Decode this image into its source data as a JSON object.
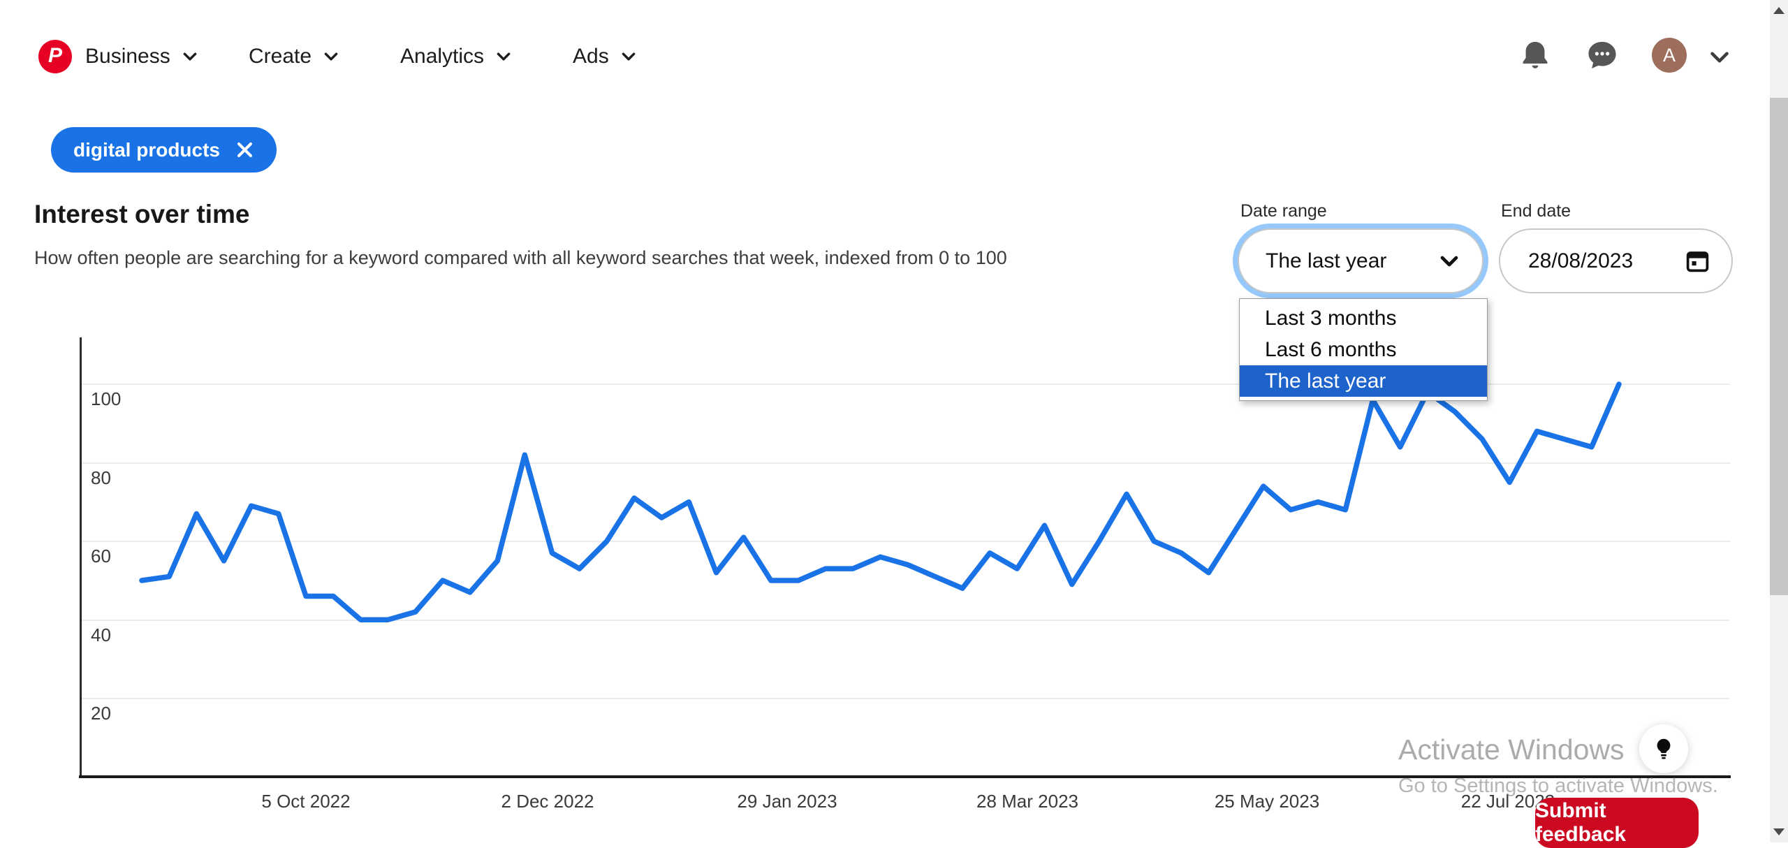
{
  "nav": {
    "brand": "Pinterest",
    "items": [
      {
        "label": "Business"
      },
      {
        "label": "Create"
      },
      {
        "label": "Analytics"
      },
      {
        "label": "Ads"
      }
    ],
    "avatar_letter": "A"
  },
  "filter_chip": {
    "label": "digital products"
  },
  "section": {
    "title": "Interest over time",
    "subtitle": "How often people are searching for a keyword compared with all keyword searches that week, indexed from 0 to 100"
  },
  "controls": {
    "date_range": {
      "label": "Date range",
      "value": "The last year",
      "options": [
        "Last 3 months",
        "Last 6 months",
        "The last year"
      ],
      "selected_index": 2
    },
    "end_date": {
      "label": "End date",
      "value": "28/08/2023"
    }
  },
  "chart_data": {
    "type": "line",
    "title": "Interest over time",
    "series": [
      {
        "name": "digital products",
        "values": [
          50,
          51,
          67,
          55,
          69,
          67,
          46,
          46,
          40,
          40,
          42,
          50,
          47,
          55,
          82,
          57,
          53,
          60,
          71,
          66,
          70,
          52,
          61,
          50,
          50,
          53,
          53,
          56,
          54,
          51,
          48,
          57,
          53,
          64,
          49,
          60,
          72,
          60,
          57,
          52,
          63,
          74,
          68,
          70,
          68,
          96,
          84,
          98,
          93,
          86,
          75,
          88,
          86,
          84,
          100
        ]
      }
    ],
    "x_tick_labels": [
      "5 Oct 2022",
      "2 Dec 2022",
      "29 Jan 2023",
      "28 Mar 2023",
      "25 May 2023",
      "22 Jul 2023"
    ],
    "y_ticks": [
      20,
      40,
      60,
      80,
      100
    ],
    "ylim": [
      0,
      100
    ],
    "grid": true,
    "legend": "none",
    "line_color": "#1a73e6"
  },
  "watermark": {
    "line1": "Activate Windows",
    "line2": "Go to Settings to activate Windows."
  },
  "feedback_button": {
    "label": "Submit feedback"
  },
  "icons": {
    "logo": "pinterest-logo",
    "nav_dropdowns": "chevron-down-icon",
    "notifications": "bell-icon",
    "messages": "chat-icon",
    "account": "avatar",
    "chip_remove": "close-icon",
    "date_picker": "calendar-icon",
    "tips": "lightbulb-icon",
    "scrollbar": [
      "scroll-up-arrow",
      "scroll-down-arrow"
    ]
  },
  "colors": {
    "accent_blue": "#1a73e6",
    "menu_highlight": "#1e63cb",
    "pinterest_red": "#e60023",
    "feedback_red": "#cb0a22",
    "avatar_brown": "#9e6e5c"
  }
}
